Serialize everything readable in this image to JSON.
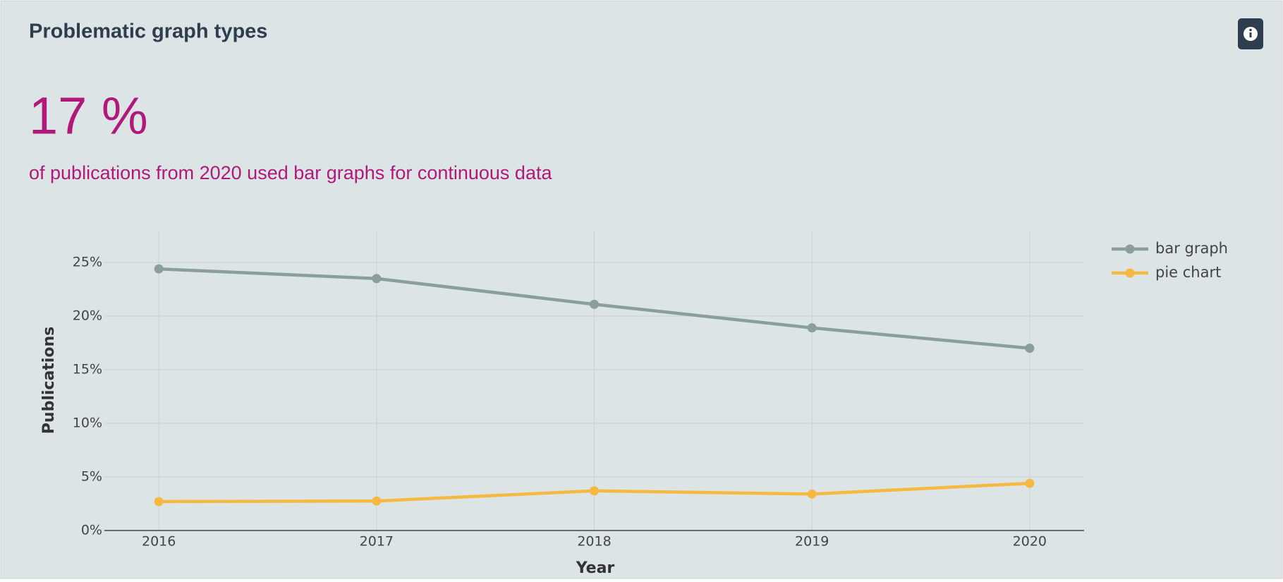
{
  "card": {
    "title": "Problematic graph types",
    "stat": "17 %",
    "stat_label": "of publications from 2020 used bar graphs for continuous data"
  },
  "chart_data": {
    "type": "line",
    "x": [
      2016,
      2017,
      2018,
      2019,
      2020
    ],
    "xlim": [
      2015.75,
      2020.25
    ],
    "xticks": [
      2016,
      2017,
      2018,
      2019,
      2020
    ],
    "ylim": [
      0,
      27.9
    ],
    "yticks": [
      {
        "value": 0,
        "label": "0%"
      },
      {
        "value": 5,
        "label": "5%"
      },
      {
        "value": 10,
        "label": "10%"
      },
      {
        "value": 15,
        "label": "15%"
      },
      {
        "value": 20,
        "label": "20%"
      },
      {
        "value": 25,
        "label": "25%"
      }
    ],
    "xlabel": "Year",
    "ylabel": "Publications",
    "grid": true,
    "series": [
      {
        "name": "bar graph",
        "color": "#8a9e9b",
        "values": [
          24.4,
          23.5,
          21.1,
          18.9,
          17.0
        ]
      },
      {
        "name": "pie chart",
        "color": "#f5b942",
        "values": [
          2.7,
          2.75,
          3.7,
          3.4,
          4.4
        ]
      }
    ]
  }
}
